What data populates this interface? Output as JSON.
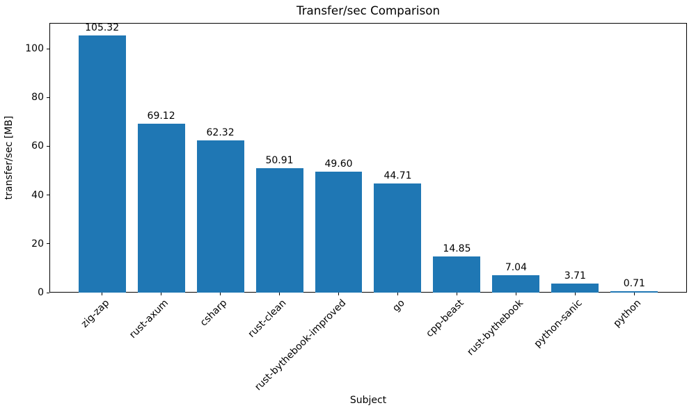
{
  "chart_data": {
    "type": "bar",
    "title": "Transfer/sec Comparison",
    "xlabel": "Subject",
    "ylabel": "transfer/sec [MB]",
    "categories": [
      "zig-zap",
      "rust-axum",
      "csharp",
      "rust-clean",
      "rust-bythebook-improved",
      "go",
      "cpp-beast",
      "rust-bythebook",
      "python-sanic",
      "python"
    ],
    "values": [
      105.32,
      69.12,
      62.32,
      50.91,
      49.6,
      44.71,
      14.85,
      7.04,
      3.71,
      0.71
    ],
    "value_labels": [
      "105.32",
      "69.12",
      "62.32",
      "50.91",
      "49.60",
      "44.71",
      "14.85",
      "7.04",
      "3.71",
      "0.71"
    ],
    "yticks": [
      0,
      20,
      40,
      60,
      80,
      100
    ],
    "ytick_labels": [
      "0",
      "20",
      "40",
      "60",
      "80",
      "100"
    ],
    "ylim": [
      0,
      110.59
    ],
    "bar_color": "#1f77b4",
    "grid": false,
    "legend_position": "none",
    "x_tick_rotation_deg": 45
  }
}
